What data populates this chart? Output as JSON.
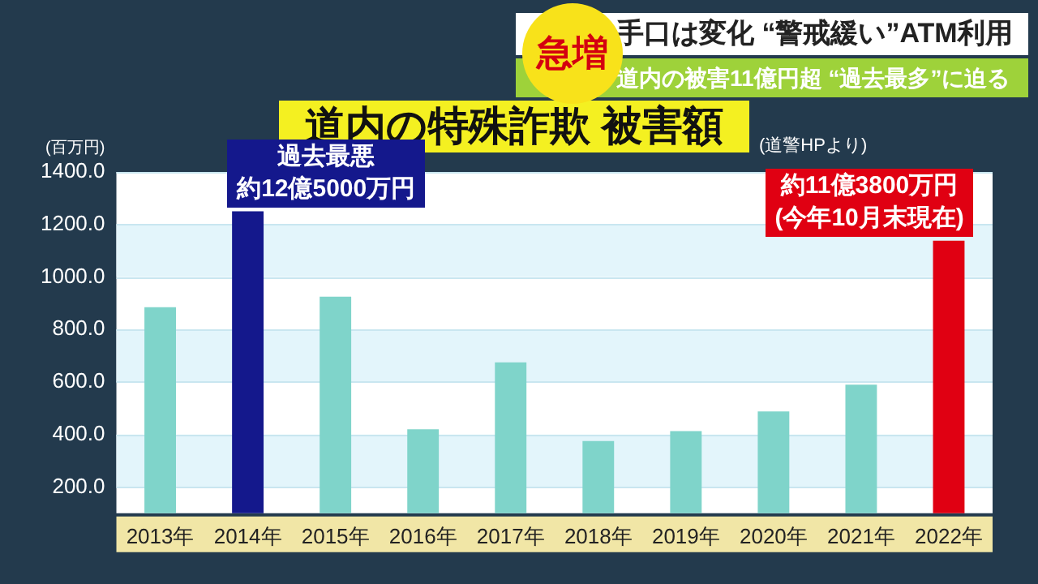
{
  "chart_data": {
    "type": "bar",
    "title": "道内の特殊詐欺 被害額",
    "subtitle": "手口は変化 “警戒緩い”ATM利用",
    "ylabel": "(百万円)",
    "categories": [
      "2013年",
      "2014年",
      "2015年",
      "2016年",
      "2017年",
      "2018年",
      "2019年",
      "2020年",
      "2021年",
      "2022年"
    ],
    "values": [
      885,
      1250,
      925,
      420,
      675,
      375,
      413,
      488,
      590,
      1138
    ],
    "colors": [
      "#7fd4ca",
      "#14188c",
      "#7fd4ca",
      "#7fd4ca",
      "#7fd4ca",
      "#7fd4ca",
      "#7fd4ca",
      "#7fd4ca",
      "#7fd4ca",
      "#e00012"
    ],
    "ylim": [
      100,
      1400
    ],
    "yticks": [
      {
        "value": 200,
        "label": "200.0"
      },
      {
        "value": 400,
        "label": "400.0"
      },
      {
        "value": 600,
        "label": "600.0"
      },
      {
        "value": 800,
        "label": "800.0"
      },
      {
        "value": 1000,
        "label": "1000.0"
      },
      {
        "value": 1200,
        "label": "1200.0"
      },
      {
        "value": 1400,
        "label": "1400.0"
      }
    ],
    "grid": "y",
    "annotations": [
      "急増",
      "道内の被害11億円超 “過去最多”に迫る",
      "(道警HPより)",
      {
        "text": "過去最悪",
        "x": "2014年",
        "y": 1250
      },
      {
        "text": "約12億5000万円",
        "x": "2014年",
        "y": 1250
      },
      {
        "text": "約11億3800万円",
        "x": "2022年",
        "y": 1138
      },
      {
        "text": "(今年10月末現在)",
        "x": "2022年",
        "y": 1138
      }
    ]
  }
}
